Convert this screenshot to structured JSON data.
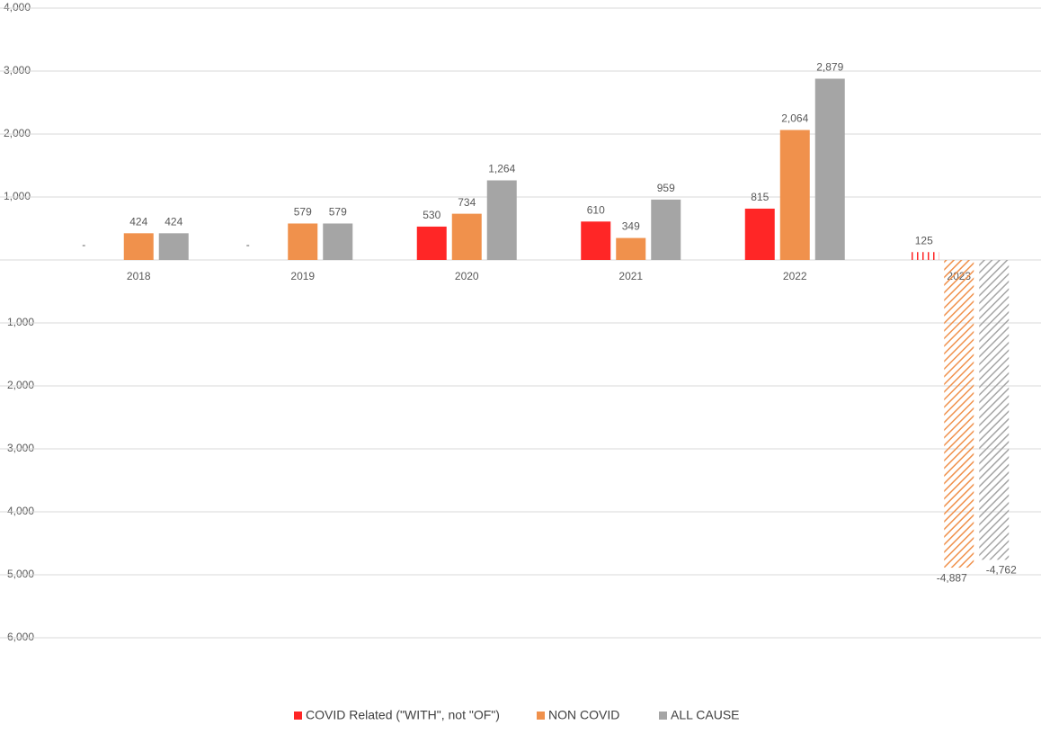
{
  "chart_data": {
    "type": "bar",
    "categories": [
      "2018",
      "2019",
      "2020",
      "2021",
      "2022",
      "2023"
    ],
    "series": [
      {
        "name": "COVID Related (\"WITH\", not \"OF\")",
        "color": "#ff2626",
        "values": [
          0,
          0,
          530,
          610,
          815,
          125
        ],
        "value_labels": [
          "-",
          "-",
          "530",
          "610",
          "815",
          "125"
        ]
      },
      {
        "name": "NON COVID",
        "color": "#f0914c",
        "values": [
          424,
          579,
          734,
          349,
          2064,
          -4887
        ],
        "value_labels": [
          "424",
          "579",
          "734",
          "349",
          "2,064",
          "-4,887"
        ]
      },
      {
        "name": "ALL CAUSE",
        "color": "#a5a5a5",
        "values": [
          424,
          579,
          1264,
          959,
          2879,
          -4762
        ],
        "value_labels": [
          "424",
          "579",
          "1,264",
          "959",
          "2,879",
          "-4,762"
        ]
      }
    ],
    "hatched": [
      false,
      false,
      false,
      false,
      false,
      true
    ],
    "ylim": [
      -6000,
      4000
    ],
    "yticks": [
      {
        "value": -6000,
        "label": "-6,000"
      },
      {
        "value": -5000,
        "label": "-5,000"
      },
      {
        "value": -4000,
        "label": "-4,000"
      },
      {
        "value": -3000,
        "label": "-3,000"
      },
      {
        "value": -2000,
        "label": "-2,000"
      },
      {
        "value": -1000,
        "label": "-1,000"
      },
      {
        "value": 0,
        "label": "-"
      },
      {
        "value": 1000,
        "label": "1,000"
      },
      {
        "value": 2000,
        "label": "2,000"
      },
      {
        "value": 3000,
        "label": "3,000"
      },
      {
        "value": 4000,
        "label": "4,000"
      }
    ],
    "grid": true,
    "legend": "bottom"
  }
}
